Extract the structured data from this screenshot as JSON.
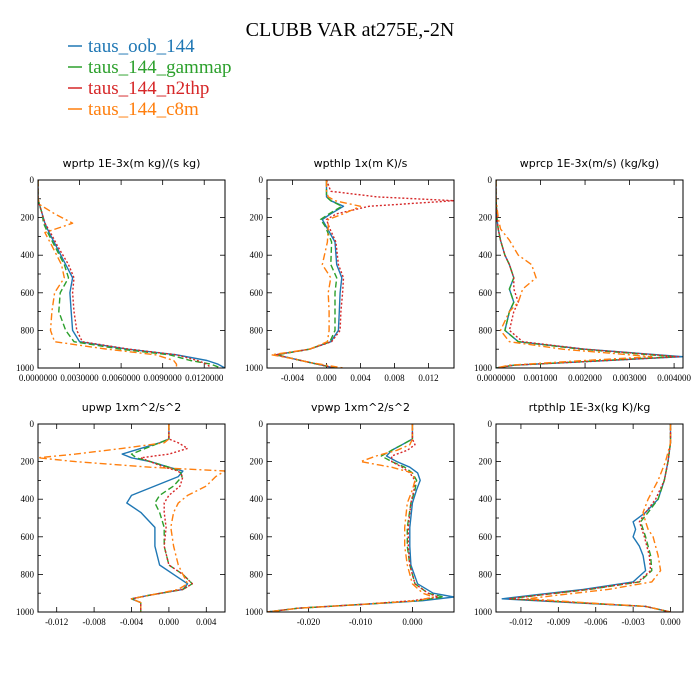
{
  "title": "CLUBB VAR at275E,-2N",
  "legend": [
    {
      "label": "taus_oob_144",
      "color": "#1f77b4",
      "dash": "solid"
    },
    {
      "label": "taus_144_gammap",
      "color": "#2ca02c",
      "dash": "dashed"
    },
    {
      "label": "taus_144_n2thp",
      "color": "#d62728",
      "dash": "dotted"
    },
    {
      "label": "taus_144_c8m",
      "color": "#ff7f0e",
      "dash": "dashdot"
    }
  ],
  "chart_data": [
    {
      "type": "line",
      "title": "wprtp  1E-3x(m kg)/(s kg)",
      "xlim": [
        0.0,
        0.0135
      ],
      "ylim": [
        1000,
        0
      ],
      "xticks": [
        0.0,
        0.003,
        0.006,
        0.009,
        0.012
      ],
      "xtick_labels": [
        "0.0000000",
        "0.0030000",
        "0.0060000",
        "0.0090000",
        "0.0120000"
      ],
      "yticks": [
        0,
        200,
        400,
        600,
        800,
        1000
      ],
      "y": [
        0,
        100,
        130,
        180,
        230,
        280,
        350,
        450,
        520,
        600,
        700,
        800,
        860,
        900,
        930,
        960,
        980,
        1000
      ],
      "series": [
        {
          "name": "taus_oob_144",
          "values": [
            0,
            0,
            0.0001,
            0.0003,
            0.0005,
            0.0008,
            0.0013,
            0.002,
            0.0025,
            0.0023,
            0.0024,
            0.0025,
            0.003,
            0.0065,
            0.01,
            0.0122,
            0.013,
            0.0135
          ]
        },
        {
          "name": "taus_144_gammap",
          "values": [
            0,
            0,
            0.0001,
            0.0003,
            0.0004,
            0.0007,
            0.0012,
            0.0019,
            0.0022,
            0.0016,
            0.0015,
            0.002,
            0.0026,
            0.006,
            0.0095,
            0.011,
            0.0125,
            0.0132
          ]
        },
        {
          "name": "taus_144_n2thp",
          "values": [
            0,
            0,
            0.0001,
            0.0003,
            0.0005,
            0.0009,
            0.0014,
            0.0022,
            0.0026,
            0.0025,
            0.0026,
            0.0028,
            0.0032,
            0.0066,
            0.01,
            0.0115,
            0.0122,
            0.0125
          ]
        },
        {
          "name": "taus_144_c8m",
          "values": [
            0,
            0,
            0.0001,
            0.0012,
            0.0025,
            0.0005,
            0.001,
            0.0017,
            0.0019,
            0.0012,
            0.001,
            0.0009,
            0.0012,
            0.005,
            0.0085,
            0.0098,
            0.01,
            0.01
          ]
        }
      ]
    },
    {
      "type": "line",
      "title": "wpthlp  1x(m K)/s",
      "xlim": [
        -0.007,
        0.015
      ],
      "ylim": [
        1000,
        0
      ],
      "xticks": [
        -0.004,
        0.0,
        0.004,
        0.008,
        0.012
      ],
      "xtick_labels": [
        "-0.004",
        "0.000",
        "0.004",
        "0.008",
        "0.012"
      ],
      "yticks": [
        0,
        200,
        400,
        600,
        800,
        1000
      ],
      "y": [
        0,
        60,
        90,
        110,
        140,
        180,
        210,
        250,
        330,
        450,
        520,
        600,
        700,
        800,
        860,
        900,
        930,
        950,
        970,
        1000
      ],
      "series": [
        {
          "name": "taus_oob_144",
          "values": [
            0,
            0,
            0,
            0.0005,
            0.002,
            0.0005,
            -0.0005,
            0.0,
            0.001,
            0.0012,
            0.0018,
            0.0016,
            0.0015,
            0.0014,
            0.0005,
            -0.002,
            -0.006,
            -0.004,
            -0.002,
            0.001
          ]
        },
        {
          "name": "taus_144_gammap",
          "values": [
            0,
            0,
            0,
            0.0005,
            0.0018,
            0.0003,
            -0.0007,
            -0.0001,
            0.0006,
            0.0005,
            0.0012,
            0.001,
            0.001,
            0.001,
            0.0004,
            -0.002,
            -0.0058,
            -0.004,
            -0.002,
            0.001
          ]
        },
        {
          "name": "taus_144_n2thp",
          "values": [
            0,
            0.0005,
            0.006,
            0.015,
            0.005,
            0.0012,
            0.0,
            0.0003,
            0.0011,
            0.0014,
            0.002,
            0.0019,
            0.0017,
            0.0016,
            0.0006,
            -0.002,
            -0.006,
            -0.004,
            -0.002,
            0.001
          ]
        },
        {
          "name": "taus_144_c8m",
          "values": [
            0,
            0,
            0.0002,
            0.001,
            0.004,
            0.002,
            0.0002,
            0.0002,
            0.0001,
            -0.0005,
            0.0005,
            0.0002,
            0.0003,
            0.0003,
            0.0001,
            -0.002,
            -0.0065,
            -0.004,
            -0.002,
            0.002
          ]
        }
      ]
    },
    {
      "type": "line",
      "title": "wprcp  1E-3x(m/s) (kg/kg)",
      "xlim": [
        0.0,
        0.0042
      ],
      "ylim": [
        1000,
        0
      ],
      "xticks": [
        0.0,
        0.001,
        0.002,
        0.003,
        0.004
      ],
      "xtick_labels": [
        "0.0000000",
        "0.001000",
        "0.002000",
        "0.003000",
        "0.004000"
      ],
      "yticks": [
        0,
        200,
        400,
        600,
        800,
        1000
      ],
      "y": [
        0,
        100,
        200,
        260,
        320,
        400,
        450,
        520,
        580,
        650,
        700,
        800,
        860,
        900,
        940,
        960,
        985,
        1000
      ],
      "series": [
        {
          "name": "taus_oob_144",
          "values": [
            0,
            0,
            2e-05,
            5e-05,
            0.0001,
            0.0002,
            0.0003,
            0.0004,
            0.0003,
            0.0004,
            0.0003,
            0.0002,
            0.0005,
            0.002,
            0.0042,
            0.0025,
            0.0004,
            0.0
          ]
        },
        {
          "name": "taus_144_gammap",
          "values": [
            0,
            0,
            2e-05,
            5e-05,
            0.0001,
            0.0002,
            0.0003,
            0.0004,
            0.0003,
            0.0004,
            0.0003,
            0.0002,
            0.0005,
            0.0019,
            0.004,
            0.0024,
            0.0004,
            0.0
          ]
        },
        {
          "name": "taus_144_n2thp",
          "values": [
            0,
            0,
            2e-05,
            5e-05,
            0.0001,
            0.0002,
            0.0003,
            0.0004,
            0.0004,
            0.0005,
            0.0004,
            0.0003,
            0.0006,
            0.002,
            0.0041,
            0.0025,
            0.0004,
            0.0
          ]
        },
        {
          "name": "taus_144_c8m",
          "values": [
            0,
            0,
            5e-05,
            0.0001,
            0.0003,
            0.0005,
            0.0008,
            0.0009,
            0.0006,
            0.0005,
            0.0003,
            0.0001,
            0.0003,
            0.0015,
            0.0035,
            0.002,
            0.0003,
            0.0
          ]
        }
      ]
    },
    {
      "type": "line",
      "title": "upwp  1xm^2/s^2",
      "xlim": [
        -0.014,
        0.006
      ],
      "ylim": [
        1000,
        0
      ],
      "xticks": [
        -0.012,
        -0.008,
        -0.004,
        0.0,
        0.004
      ],
      "xtick_labels": [
        "-0.012",
        "-0.008",
        "-0.004",
        "0.000",
        "0.004"
      ],
      "yticks": [
        0,
        200,
        400,
        600,
        800,
        1000
      ],
      "y": [
        0,
        80,
        100,
        130,
        160,
        180,
        200,
        230,
        250,
        280,
        330,
        380,
        420,
        470,
        550,
        650,
        750,
        800,
        850,
        880,
        910,
        930,
        950,
        1000
      ],
      "series": [
        {
          "name": "taus_oob_144",
          "values": [
            0,
            0,
            -0.001,
            -0.003,
            -0.005,
            -0.004,
            -0.002,
            0.0,
            0.0015,
            0.001,
            -0.0015,
            -0.004,
            -0.0045,
            -0.003,
            -0.0015,
            -0.0015,
            -0.001,
            0.0005,
            0.002,
            0.0015,
            -0.002,
            -0.004,
            -0.003,
            -0.003
          ]
        },
        {
          "name": "taus_144_gammap",
          "values": [
            0,
            0,
            -0.001,
            -0.0025,
            -0.004,
            -0.0035,
            -0.002,
            0.0,
            0.0012,
            0.0014,
            0.0005,
            -0.001,
            -0.0015,
            -0.001,
            -0.0005,
            -0.0005,
            0.0,
            0.0015,
            0.0025,
            0.0015,
            -0.002,
            -0.004,
            -0.003,
            -0.003
          ]
        },
        {
          "name": "taus_144_n2thp",
          "values": [
            0,
            0,
            0.001,
            0.002,
            0.0,
            -0.003,
            -0.002,
            -0.0005,
            0.001,
            0.0015,
            0.0012,
            0.0,
            -0.0005,
            -0.0005,
            -0.0003,
            -0.0005,
            0.0,
            0.0015,
            0.0025,
            0.0015,
            -0.002,
            -0.004,
            -0.003,
            -0.003
          ]
        },
        {
          "name": "taus_144_c8m",
          "values": [
            0,
            0,
            -0.0005,
            -0.005,
            -0.01,
            -0.014,
            -0.01,
            -0.002,
            0.006,
            0.005,
            0.004,
            0.002,
            0.001,
            0.0005,
            0.0002,
            0.0005,
            0.001,
            0.0015,
            0.002,
            0.001,
            -0.002,
            -0.004,
            -0.003,
            -0.003
          ]
        }
      ]
    },
    {
      "type": "line",
      "title": "vpwp  1xm^2/s^2",
      "xlim": [
        -0.028,
        0.008
      ],
      "ylim": [
        1000,
        0
      ],
      "xticks": [
        -0.02,
        -0.01,
        0.0
      ],
      "xtick_labels": [
        "-0.020",
        "-0.010",
        "0.000"
      ],
      "yticks": [
        0,
        200,
        400,
        600,
        800,
        1000
      ],
      "y": [
        0,
        80,
        110,
        140,
        170,
        200,
        230,
        260,
        300,
        350,
        420,
        550,
        650,
        750,
        850,
        900,
        920,
        940,
        960,
        980,
        1000
      ],
      "series": [
        {
          "name": "taus_oob_144",
          "values": [
            0,
            0,
            -0.002,
            -0.004,
            -0.005,
            -0.003,
            -0.0005,
            0.001,
            0.0015,
            0.0008,
            0.0,
            -0.0005,
            -0.0005,
            -0.0003,
            0.001,
            0.004,
            0.008,
            0.002,
            -0.01,
            -0.022,
            -0.028
          ]
        },
        {
          "name": "taus_144_gammap",
          "values": [
            0,
            0,
            -0.002,
            -0.004,
            -0.006,
            -0.004,
            -0.0015,
            0.0,
            0.0008,
            0.0005,
            -0.0003,
            -0.001,
            -0.001,
            -0.0005,
            0.0005,
            0.003,
            0.006,
            0.001,
            -0.01,
            -0.022,
            -0.028
          ]
        },
        {
          "name": "taus_144_n2thp",
          "values": [
            0,
            0,
            0.0005,
            -0.001,
            -0.004,
            -0.004,
            -0.002,
            -0.0005,
            0.0005,
            0.0003,
            -0.0003,
            -0.0008,
            -0.0008,
            -0.0005,
            0.0005,
            0.003,
            0.005,
            0.0,
            -0.01,
            -0.022,
            -0.028
          ]
        },
        {
          "name": "taus_144_c8m",
          "values": [
            0,
            0,
            -0.0005,
            -0.003,
            -0.007,
            -0.01,
            -0.004,
            0.0,
            0.0005,
            0.0,
            -0.001,
            -0.0015,
            -0.0015,
            -0.001,
            0.0,
            0.002,
            0.004,
            0.001,
            -0.01,
            -0.022,
            -0.028
          ]
        }
      ]
    },
    {
      "type": "line",
      "title": "rtpthlp  1E-3x(kg K)/kg",
      "xlim": [
        -0.014,
        0.001
      ],
      "ylim": [
        1000,
        0
      ],
      "xticks": [
        -0.012,
        -0.009,
        -0.006,
        -0.003,
        0.0
      ],
      "xtick_labels": [
        "-0.012",
        "-0.009",
        "-0.006",
        "-0.003",
        "0.000"
      ],
      "yticks": [
        0,
        200,
        400,
        600,
        800,
        1000
      ],
      "y": [
        0,
        100,
        200,
        300,
        400,
        470,
        520,
        560,
        600,
        650,
        700,
        780,
        840,
        880,
        910,
        930,
        950,
        970,
        1000
      ],
      "series": [
        {
          "name": "taus_oob_144",
          "values": [
            0,
            0,
            -0.0002,
            -0.0005,
            -0.001,
            -0.002,
            -0.003,
            -0.0028,
            -0.003,
            -0.0025,
            -0.0022,
            -0.002,
            -0.003,
            -0.007,
            -0.011,
            -0.0135,
            -0.008,
            -0.002,
            0.0
          ]
        },
        {
          "name": "taus_144_gammap",
          "values": [
            0,
            0,
            -0.0002,
            -0.0005,
            -0.001,
            -0.0018,
            -0.0024,
            -0.0022,
            -0.002,
            -0.0018,
            -0.0016,
            -0.0015,
            -0.0025,
            -0.0065,
            -0.0105,
            -0.013,
            -0.0075,
            -0.002,
            0.0
          ]
        },
        {
          "name": "taus_144_n2thp",
          "values": [
            0,
            0,
            -0.0002,
            -0.0005,
            -0.0012,
            -0.002,
            -0.0025,
            -0.0023,
            -0.0021,
            -0.0019,
            -0.0017,
            -0.0016,
            -0.0026,
            -0.0066,
            -0.0105,
            -0.013,
            -0.0075,
            -0.002,
            0.0
          ]
        },
        {
          "name": "taus_144_c8m",
          "values": [
            0,
            0,
            -0.0004,
            -0.001,
            -0.0018,
            -0.0022,
            -0.002,
            -0.0018,
            -0.0014,
            -0.0012,
            -0.001,
            -0.0008,
            -0.0015,
            -0.005,
            -0.009,
            -0.0115,
            -0.007,
            -0.002,
            0.0
          ]
        }
      ]
    }
  ]
}
